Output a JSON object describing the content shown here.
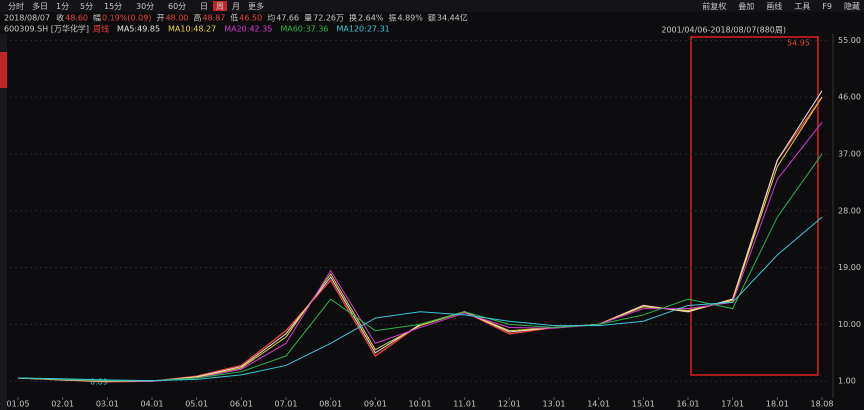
{
  "toolbar": {
    "left": [
      "分时",
      "多日",
      "1分",
      "5分",
      "15分",
      "30分",
      "60分",
      "日",
      "周",
      "月",
      "更多"
    ],
    "right": [
      "前复权",
      "叠加",
      "画线",
      "工具",
      "F9",
      "隐藏"
    ]
  },
  "quote": [
    [
      "2018/08/07",
      ""
    ],
    [
      "收",
      "48.60"
    ],
    [
      "幅",
      "0.19%(0.09)"
    ],
    [
      "开",
      "48.00"
    ],
    [
      "高",
      "48.87"
    ],
    [
      "低",
      "46.50"
    ],
    [
      "均",
      "47.66"
    ],
    [
      "量",
      "72.26万"
    ],
    [
      "换",
      "2.64%"
    ],
    [
      "振",
      "4.89%"
    ],
    [
      "额",
      "34.44亿"
    ]
  ],
  "range_label": "2001/04/06-2018/08/07(880周)",
  "chart_data": {
    "type": "line",
    "title": "600309.SH [万华化学]",
    "categories": [
      "01.05",
      "02.01",
      "03.01",
      "04.01",
      "05.01",
      "06.01",
      "07.01",
      "08.01",
      "09.01",
      "10.01",
      "11.01",
      "12.01",
      "13.01",
      "14.01",
      "15.01",
      "16.01",
      "17.01",
      "18.01",
      "18.08"
    ],
    "series": [
      {
        "name": "周线",
        "color": "#e8453c",
        "values": [
          1.5,
          1.2,
          0.9,
          1.0,
          1.8,
          3.5,
          9,
          17,
          5,
          10,
          12,
          8.5,
          9.5,
          10,
          13,
          12,
          14,
          36,
          46
        ]
      },
      {
        "name": "MA5:49.85",
        "color": "#e6e6e6",
        "values": [
          1.5,
          1.2,
          0.95,
          1.0,
          1.7,
          3.3,
          8.5,
          17.5,
          5.5,
          10,
          12,
          8.8,
          9.5,
          10,
          13,
          12,
          14,
          36,
          47
        ]
      },
      {
        "name": "MA10:48.27",
        "color": "#e6d53c",
        "values": [
          1.5,
          1.25,
          1.0,
          1.0,
          1.6,
          3.1,
          8,
          18,
          6,
          9.8,
          12,
          9,
          9.5,
          10,
          12.8,
          12.2,
          13.8,
          35,
          46
        ]
      },
      {
        "name": "MA20:42.35",
        "color": "#d23cd2",
        "values": [
          1.5,
          1.3,
          1.05,
          1.0,
          1.5,
          2.9,
          7,
          18.5,
          7,
          9.5,
          11.8,
          9.5,
          9.4,
          10,
          12.5,
          12.5,
          13.5,
          33,
          42
        ]
      },
      {
        "name": "MA60:37.36",
        "color": "#2fb34a",
        "values": [
          1.5,
          1.3,
          1.1,
          1.1,
          1.5,
          2.5,
          5,
          14,
          9,
          10,
          12,
          10,
          9.5,
          10,
          11.5,
          14,
          12.5,
          27,
          37
        ]
      },
      {
        "name": "MA120:27.31",
        "color": "#3cc8d8",
        "values": [
          1.5,
          1.4,
          1.2,
          1.1,
          1.3,
          2,
          3.5,
          7,
          11,
          12,
          11.5,
          10.5,
          9.8,
          9.8,
          10.5,
          13,
          13.5,
          21,
          27
        ]
      }
    ],
    "annotations": [
      "54.95",
      "0.89"
    ],
    "ylim": [
      -1.5,
      56
    ],
    "yticks": [
      {
        "value": 1,
        "label": "1.00"
      },
      {
        "value": 10,
        "label": "10.00"
      },
      {
        "value": 19,
        "label": "19.00"
      },
      {
        "value": 28,
        "label": "28.00"
      },
      {
        "value": 37,
        "label": "37.00"
      },
      {
        "value": 46,
        "label": "46.00"
      },
      {
        "value": 55,
        "label": "55.00"
      }
    ],
    "grid": true
  }
}
